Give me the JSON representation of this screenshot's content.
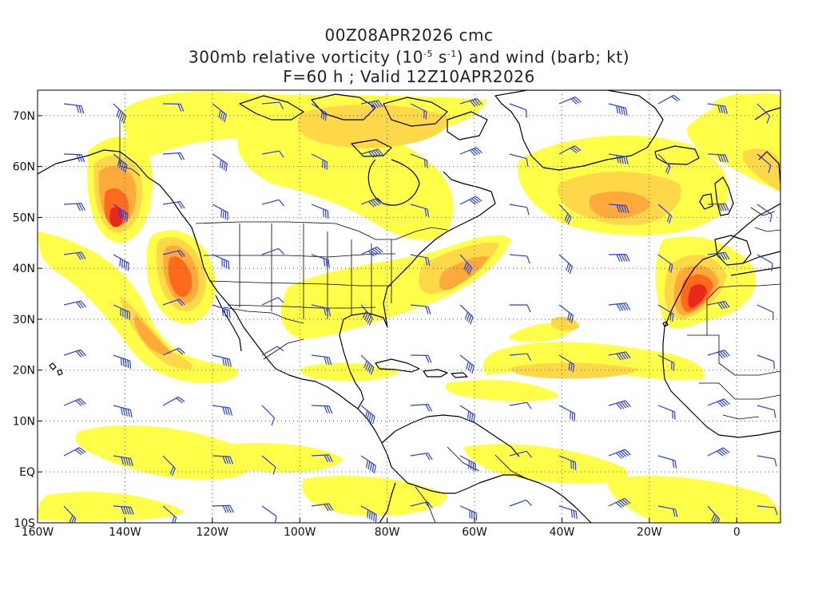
{
  "title": {
    "line1": "00Z08APR2026 cmc",
    "line2_prefix": "300mb relative vorticity (10",
    "line2_exp1": "-5",
    "line2_mid": " s",
    "line2_exp2": "-1",
    "line2_suffix": ") and wind (barb; kt)",
    "line3": "F=60 h ; Valid 12Z10APR2026"
  },
  "map": {
    "lon_range": [
      -160,
      10
    ],
    "lat_range": [
      -10,
      75
    ],
    "x_ticks": [
      {
        "lon": -160,
        "label": "160W"
      },
      {
        "lon": -140,
        "label": "140W"
      },
      {
        "lon": -120,
        "label": "120W"
      },
      {
        "lon": -100,
        "label": "100W"
      },
      {
        "lon": -80,
        "label": "80W"
      },
      {
        "lon": -60,
        "label": "60W"
      },
      {
        "lon": -40,
        "label": "40W"
      },
      {
        "lon": -20,
        "label": "20W"
      },
      {
        "lon": 0,
        "label": "0"
      }
    ],
    "y_ticks": [
      {
        "lat": -10,
        "label": "10S"
      },
      {
        "lat": 0,
        "label": "EQ"
      },
      {
        "lat": 10,
        "label": "10N"
      },
      {
        "lat": 20,
        "label": "20N"
      },
      {
        "lat": 30,
        "label": "30N"
      },
      {
        "lat": 40,
        "label": "40N"
      },
      {
        "lat": 50,
        "label": "50N"
      },
      {
        "lat": 60,
        "label": "60N"
      },
      {
        "lat": 70,
        "label": "70N"
      }
    ],
    "grid": "dotted",
    "colors": {
      "vort_1": "#ffff4a",
      "vort_2": "#ffd84a",
      "vort_3": "#ffaa3a",
      "vort_4": "#ff6a1c",
      "vort_5": "#e8281a",
      "coast": "#000000",
      "barb": "#2b3fe0"
    }
  }
}
